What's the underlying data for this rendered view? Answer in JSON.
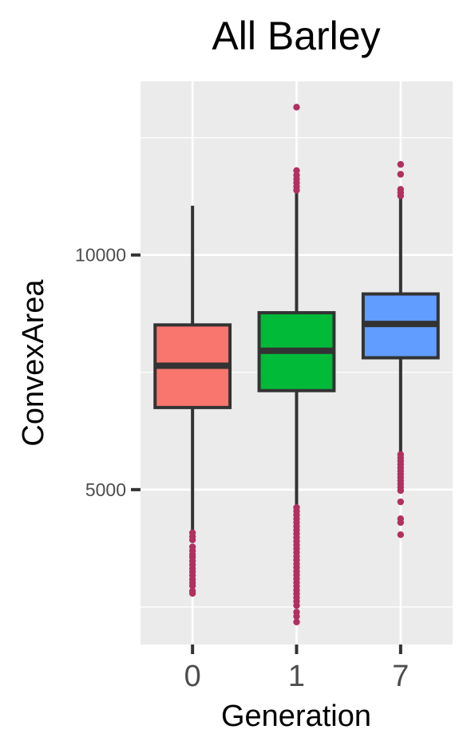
{
  "chart_data": {
    "type": "box",
    "title": "All Barley",
    "xlabel": "Generation",
    "ylabel": "ConvexArea",
    "categories": [
      "0",
      "1",
      "7"
    ],
    "y_ticks": [
      5000,
      10000
    ],
    "y_tick_labels": [
      "5000",
      "10000"
    ],
    "ylim": [
      1700,
      13700
    ],
    "grid": true,
    "legend": "none",
    "colors": {
      "panel": "#ebebeb",
      "grid": "#ffffff",
      "box_line": "#333333",
      "outlier": "#b03060",
      "text": "#4d4d4d"
    },
    "boxes": [
      {
        "category": "0",
        "color": "#f8766d",
        "q1": 6750,
        "median": 7640,
        "q3": 8510,
        "whisker_low": 4100,
        "whisker_high": 11050,
        "outliers": [
          4080,
          4000,
          3930,
          3780,
          3700,
          3620,
          3560,
          3480,
          3400,
          3320,
          3250,
          3170,
          3090,
          3020,
          2950,
          2840,
          2790
        ]
      },
      {
        "category": "1",
        "color": "#00ba38",
        "q1": 7110,
        "median": 7960,
        "q3": 8770,
        "whisker_low": 4650,
        "whisker_high": 11320,
        "outliers": [
          13150,
          11800,
          11700,
          11620,
          11540,
          11460,
          11380,
          4620,
          4540,
          4460,
          4380,
          4300,
          4220,
          4140,
          4060,
          3980,
          3900,
          3820,
          3740,
          3660,
          3580,
          3500,
          3420,
          3340,
          3260,
          3180,
          3100,
          3020,
          2940,
          2860,
          2780,
          2700,
          2620,
          2530,
          2390,
          2300,
          2180
        ]
      },
      {
        "category": "7",
        "color": "#619cff",
        "q1": 7810,
        "median": 8530,
        "q3": 9170,
        "whisker_low": 5800,
        "whisker_high": 11250,
        "outliers": [
          11930,
          11720,
          11400,
          11330,
          11260,
          5750,
          5680,
          5610,
          5540,
          5470,
          5400,
          5330,
          5260,
          5190,
          5120,
          5050,
          4980,
          4740,
          4380,
          4300,
          4040
        ]
      }
    ]
  }
}
